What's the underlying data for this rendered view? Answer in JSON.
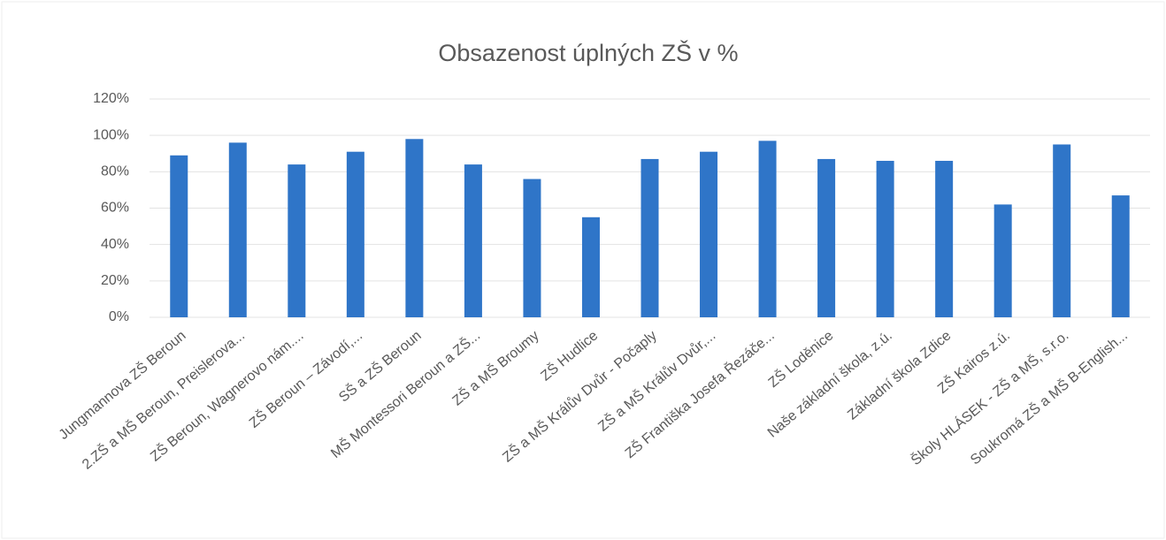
{
  "chart_data": {
    "type": "bar",
    "title": "Obsazenost úplných ZŠ v %",
    "categories": [
      "Jungmannova ZŠ Beroun",
      "2.ZŠ a MŠ Beroun, Preislerova...",
      "ZŠ Beroun, Wagnerovo nám....",
      "ZŠ Beroun – Závodí,...",
      "SŠ a ZŠ  Beroun",
      "MŠ Montessori Beroun a ZŠ...",
      "ZŠ a MŠ Broumy",
      "ZŠ Hudlice",
      "ZŠ a MŠ Králův Dvůr - Počaply",
      "ZŠ a MŠ Králův Dvůr,...",
      "ZŠ Františka Josefa Řezáče...",
      "ZŠ Loděnice",
      "Naše základní škola, z.ú.",
      "Základní škola Zdice",
      "ZŠ Kairos z.ú.",
      "Školy HLÁSEK - ZŠ a MŠ, s.r.o.",
      "Soukromá ZŠ a MŠ B-English..."
    ],
    "values": [
      89,
      96,
      84,
      91,
      98,
      84,
      76,
      55,
      87,
      91,
      97,
      87,
      86,
      86,
      62,
      95,
      67
    ],
    "color": "#2f75c8",
    "ylim": [
      0,
      120
    ],
    "yticks": [
      {
        "value": 0,
        "label": "0%"
      },
      {
        "value": 20,
        "label": "20%"
      },
      {
        "value": 40,
        "label": "40%"
      },
      {
        "value": 60,
        "label": "60%"
      },
      {
        "value": 80,
        "label": "80%"
      },
      {
        "value": 100,
        "label": "100%"
      },
      {
        "value": 120,
        "label": "120%"
      }
    ],
    "grid": true
  }
}
